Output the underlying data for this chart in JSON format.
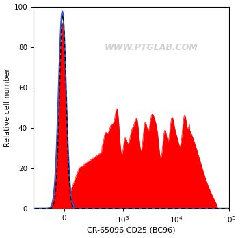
{
  "xlabel": "CR-65096 CD25 (BC96)",
  "ylabel": "Relative cell number",
  "ylim": [
    0,
    100
  ],
  "yticks": [
    0,
    20,
    40,
    60,
    80,
    100
  ],
  "watermark": "WWW.PTGLAB.COM",
  "bg_color": "#ffffff",
  "red_fill_color": "#ff0000",
  "blue_line_color": "#3355cc",
  "black_dash_color": "#000000",
  "linthresh": 150
}
